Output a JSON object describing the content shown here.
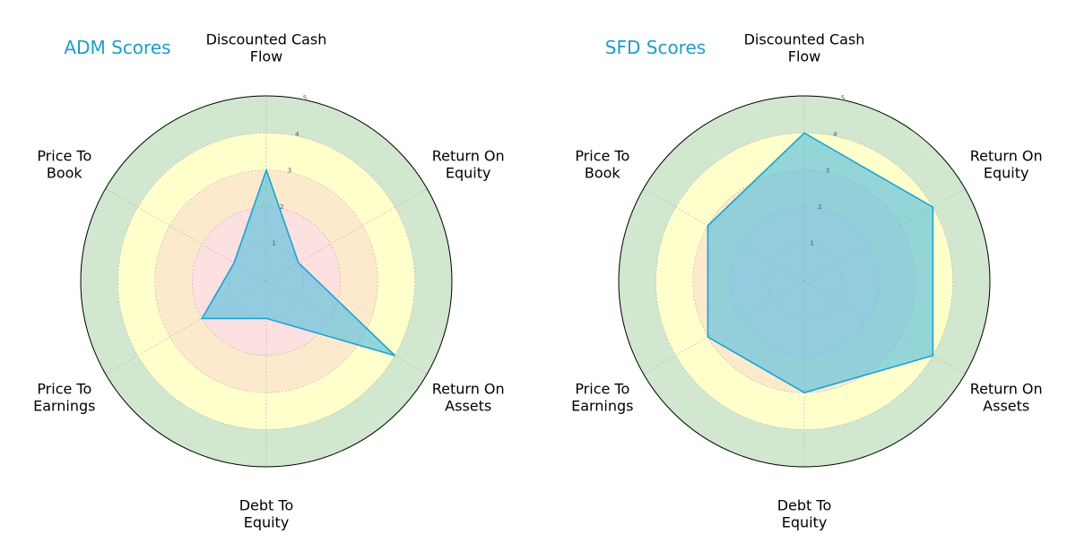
{
  "colors": {
    "band_red": "#fde0e0",
    "band_orange": "#fdeacd",
    "band_yellow": "#ffffcc",
    "band_green": "#d1e7cf",
    "fill": "#5bc0de",
    "stroke": "#1ba3d8",
    "title": "#1b9ec8",
    "outer_ring": "#000000",
    "grid": "#b0b0b0"
  },
  "chart_data": [
    {
      "type": "radar",
      "title": "ADM Scores",
      "axes": [
        "Discounted Cash\nFlow",
        "Return On\nEquity",
        "Return On\nAssets",
        "Debt To\nEquity",
        "Price To\nEarnings",
        "Price To\nBook"
      ],
      "rlim": [
        0,
        5
      ],
      "rticks": [
        1,
        2,
        3,
        4,
        5
      ],
      "values": [
        3,
        1,
        4,
        1,
        2,
        1
      ],
      "grid": true
    },
    {
      "type": "radar",
      "title": "SFD Scores",
      "axes": [
        "Discounted Cash\nFlow",
        "Return On\nEquity",
        "Return On\nAssets",
        "Debt To\nEquity",
        "Price To\nEarnings",
        "Price To\nBook"
      ],
      "rlim": [
        0,
        5
      ],
      "rticks": [
        1,
        2,
        3,
        4,
        5
      ],
      "values": [
        4,
        4,
        4,
        3,
        3,
        3
      ],
      "grid": true
    }
  ]
}
